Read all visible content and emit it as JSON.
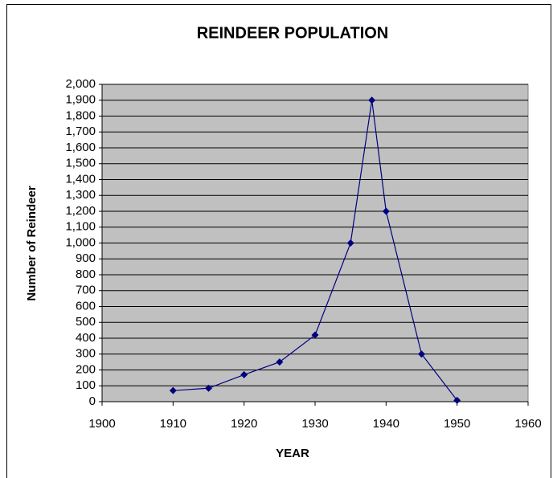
{
  "chart_data": {
    "type": "line",
    "title": "REINDEER POPULATION",
    "x_label": "YEAR",
    "y_label": "Number of Reindeer",
    "x": [
      1910,
      1915,
      1920,
      1925,
      1930,
      1935,
      1938,
      1940,
      1945,
      1950
    ],
    "values": [
      70,
      85,
      170,
      250,
      420,
      1000,
      1900,
      1200,
      300,
      8
    ],
    "color": "#000080",
    "xlim": [
      1900,
      1960
    ],
    "xticks": [
      1900,
      1910,
      1920,
      1930,
      1940,
      1950,
      1960
    ],
    "ylim": [
      0,
      2000
    ],
    "yticks": [
      0,
      100,
      200,
      300,
      400,
      500,
      600,
      700,
      800,
      900,
      {
        "value": 1000,
        "label": "1,000"
      },
      {
        "value": 1100,
        "label": "1,100"
      },
      {
        "value": 1200,
        "label": "1,200"
      },
      {
        "value": 1300,
        "label": "1,300"
      },
      {
        "value": 1400,
        "label": "1,400"
      },
      {
        "value": 1500,
        "label": "1,500"
      },
      {
        "value": 1600,
        "label": "1,600"
      },
      {
        "value": 1700,
        "label": "1,700"
      },
      {
        "value": 1800,
        "label": "1,800"
      },
      {
        "value": 1900,
        "label": "1,900"
      },
      {
        "value": 2000,
        "label": "2,000"
      }
    ],
    "grid": true,
    "plot_background": "#c0c0c0"
  }
}
